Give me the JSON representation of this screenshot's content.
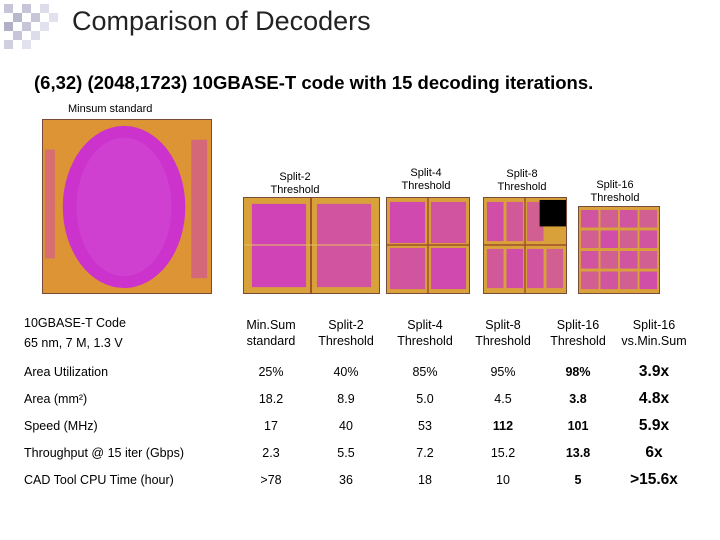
{
  "slide": {
    "title": "Comparison of Decoders",
    "subtitle": "(6,32) (2048,1723) 10GBASE-T code with 15 decoding iterations."
  },
  "figure": {
    "chips": [
      {
        "label_line1": "Minsum standard",
        "label_line2": ""
      },
      {
        "label_line1": "Split-2",
        "label_line2": "Threshold"
      },
      {
        "label_line1": "Split-4",
        "label_line2": "Threshold"
      },
      {
        "label_line1": "Split-8",
        "label_line2": "Threshold"
      },
      {
        "label_line1": "Split-16",
        "label_line2": "Threshold"
      }
    ],
    "colors": {
      "core": "#cc33cc",
      "edge": "#e0a040",
      "accent": "#f2c820",
      "dark": "#000000"
    }
  },
  "table": {
    "header": {
      "label_line1": "10GBASE-T Code",
      "label_line2": "65 nm, 7 M, 1.3 V",
      "cols": [
        {
          "line1": "Min.Sum",
          "line2": "standard"
        },
        {
          "line1": "Split-2",
          "line2": "Threshold"
        },
        {
          "line1": "Split-4",
          "line2": "Threshold"
        },
        {
          "line1": "Split-8",
          "line2": "Threshold"
        },
        {
          "line1": "Split-16",
          "line2": "Threshold"
        },
        {
          "line1": "Split-16",
          "line2": "vs.Min.Sum"
        }
      ]
    },
    "rows": [
      {
        "label": "Area Utilization",
        "values": [
          "25%",
          "40%",
          "85%",
          "95%",
          "98%",
          "3.9x"
        ]
      },
      {
        "label": "Area (mm²)",
        "values": [
          "18.2",
          "8.9",
          "5.0",
          "4.5",
          "3.8",
          "4.8x"
        ]
      },
      {
        "label": "Speed (MHz)",
        "values": [
          "17",
          "40",
          "53",
          "112",
          "101",
          "5.9x"
        ]
      },
      {
        "label": "Throughput @ 15 iter (Gbps)",
        "values": [
          "2.3",
          "5.5",
          "7.2",
          "15.2",
          "13.8",
          "6x"
        ]
      },
      {
        "label": "CAD Tool CPU Time (hour)",
        "values": [
          ">78",
          "36",
          "18",
          "10",
          "5",
          ">15.6x"
        ]
      }
    ]
  }
}
